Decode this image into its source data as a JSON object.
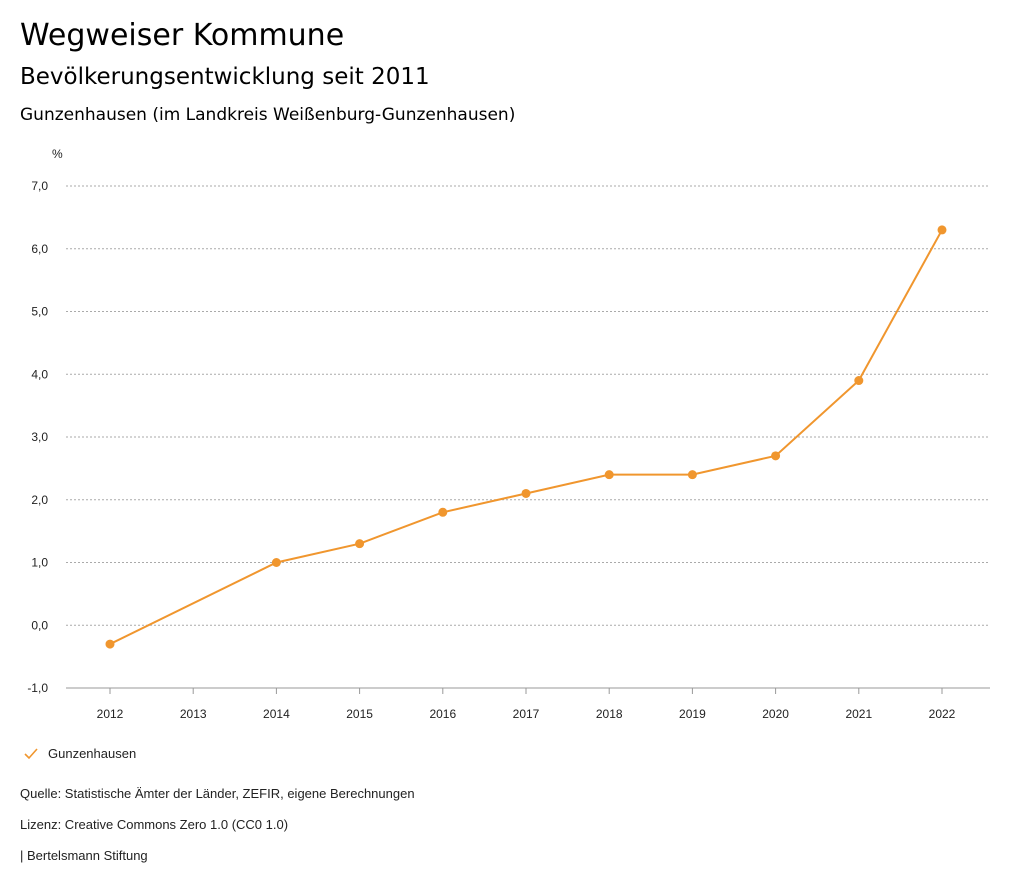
{
  "header": {
    "title": "Wegweiser Kommune",
    "subtitle": "Bevölkerungsentwicklung seit 2011",
    "region": "Gunzenhausen (im Landkreis Weißenburg-Gunzenhausen)"
  },
  "chart_data": {
    "type": "line",
    "ylabel": "%",
    "ylim": [
      -1,
      7
    ],
    "yticks": [
      -1,
      0,
      1,
      2,
      3,
      4,
      5,
      6,
      7
    ],
    "ytick_labels": [
      "-1,0",
      "0,0",
      "1,0",
      "2,0",
      "3,0",
      "4,0",
      "5,0",
      "6,0",
      "7,0"
    ],
    "categories": [
      "2012",
      "2013",
      "2014",
      "2015",
      "2016",
      "2017",
      "2018",
      "2019",
      "2020",
      "2021",
      "2022"
    ],
    "series": [
      {
        "name": "Gunzenhausen",
        "color": "#f0962e",
        "values": [
          -0.3,
          null,
          1.0,
          1.3,
          1.8,
          2.1,
          2.4,
          2.4,
          2.7,
          3.9,
          6.3
        ]
      }
    ],
    "grid": true,
    "legend": "bottom-left"
  },
  "footer": {
    "source": "Quelle: Statistische Ämter der Länder, ZEFIR, eigene Berechnungen",
    "license": "Lizenz: Creative Commons Zero 1.0 (CC0 1.0)",
    "publisher": "| Bertelsmann Stiftung"
  }
}
